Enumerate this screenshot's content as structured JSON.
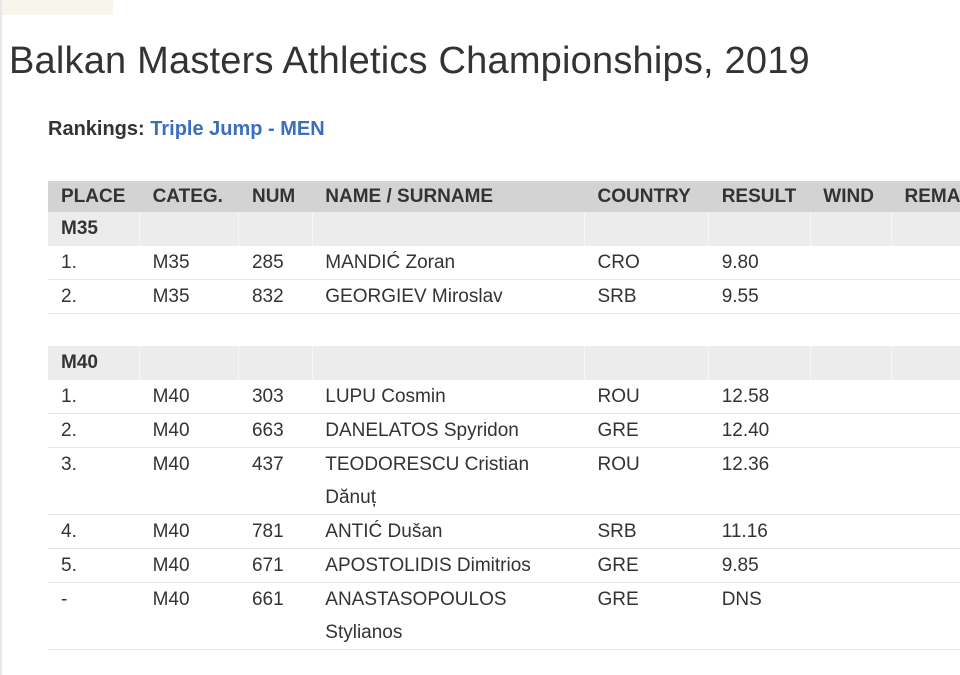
{
  "page": {
    "title": "Balkan Masters Athletics Championships, 2019",
    "rankings_label": "Rankings:",
    "event": "Triple Jump - MEN"
  },
  "table": {
    "headers": {
      "place": "PLACE",
      "category": "CATEG.",
      "num": "NUM",
      "name": "NAME / SURNAME",
      "country": "COUNTRY",
      "result": "RESULT",
      "wind": "WIND",
      "remark": "REMARK"
    },
    "groups": [
      {
        "label": "M35",
        "rows": [
          {
            "place": "1.",
            "category": "M35",
            "num": "285",
            "name": "MANDIĆ Zoran",
            "country": "CRO",
            "result": "9.80"
          },
          {
            "place": "2.",
            "category": "M35",
            "num": "832",
            "name": "GEORGIEV Miroslav",
            "country": "SRB",
            "result": "9.55"
          }
        ]
      },
      {
        "label": "M40",
        "rows": [
          {
            "place": "1.",
            "category": "M40",
            "num": "303",
            "name": "LUPU Cosmin",
            "country": "ROU",
            "result": "12.58"
          },
          {
            "place": "2.",
            "category": "M40",
            "num": "663",
            "name": "DANELATOS Spyridon",
            "country": "GRE",
            "result": "12.40"
          },
          {
            "place": "3.",
            "category": "M40",
            "num": "437",
            "name": "TEODORESCU Cristian Dănuț",
            "country": "ROU",
            "result": "12.36"
          },
          {
            "place": "4.",
            "category": "M40",
            "num": "781",
            "name": "ANTIĆ Dušan",
            "country": "SRB",
            "result": "11.16"
          },
          {
            "place": "5.",
            "category": "M40",
            "num": "671",
            "name": "APOSTOLIDIS Dimitrios",
            "country": "GRE",
            "result": "9.85"
          },
          {
            "place": "-",
            "category": "M40",
            "num": "661",
            "name": "ANASTASOPOULOS Stylianos",
            "country": "GRE",
            "result": "DNS"
          }
        ]
      }
    ]
  }
}
